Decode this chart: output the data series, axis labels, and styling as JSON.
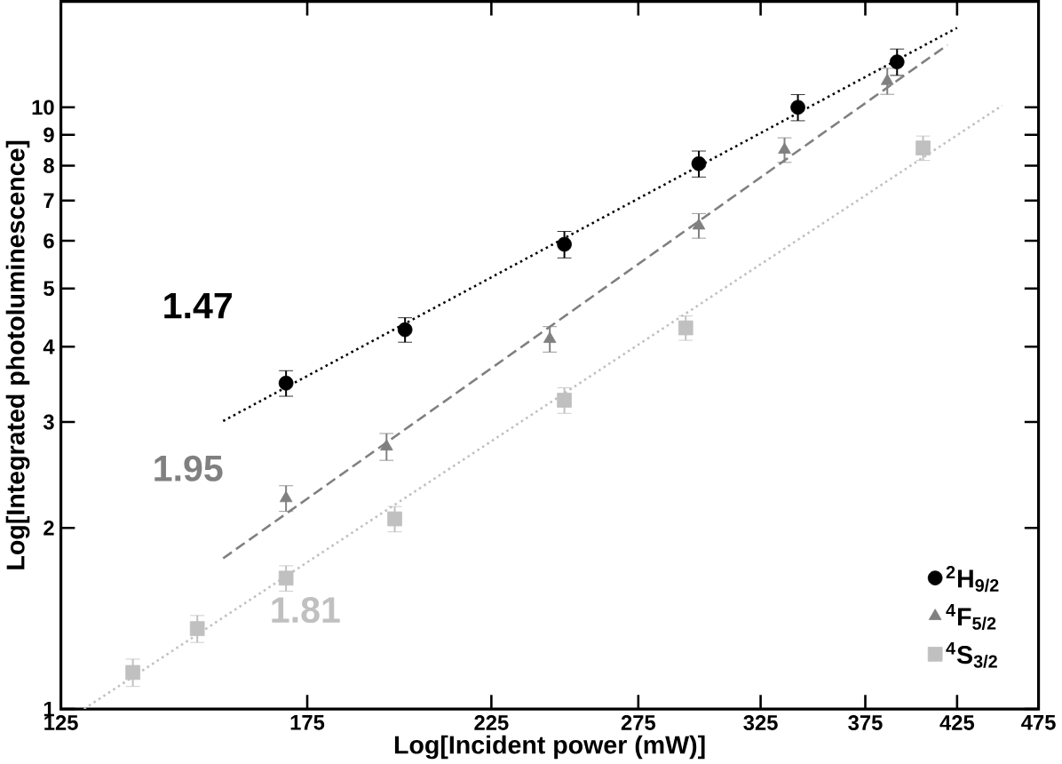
{
  "chart_data": {
    "type": "scatter",
    "xlabel": "Log[Incident power (mW)]",
    "ylabel": "Log[Integrated photoluminescence]",
    "log": "xy",
    "xlim": [
      125,
      475
    ],
    "ylim": [
      1,
      15
    ],
    "xticks": [
      125,
      175,
      225,
      275,
      325,
      375,
      425,
      475
    ],
    "yticks": [
      1,
      2,
      3,
      4,
      5,
      6,
      7,
      8,
      9,
      10
    ],
    "grid": false,
    "legend": "bottom right",
    "series": [
      {
        "name": "$^{2}$H$_{9/2}$",
        "marker": "circle",
        "color": "#000000",
        "x": [
          170,
          200,
          248.6,
          298.7,
          342,
          391.6
        ],
        "values": [
          3.48,
          4.27,
          5.92,
          8.06,
          10,
          11.9
        ],
        "errors": [
          0.17,
          0.2,
          0.3,
          0.4,
          0.5,
          0.6
        ]
      },
      {
        "name": "$^{4}$F$_{5/2}$",
        "marker": "triangle",
        "color": "#808080",
        "x": [
          170,
          195,
          243.7,
          298.7,
          335.8,
          386.4
        ],
        "values": [
          2.24,
          2.73,
          4.12,
          6.36,
          8.5,
          11.06
        ],
        "errors": [
          0.11,
          0.14,
          0.2,
          0.3,
          0.4,
          0.55
        ]
      },
      {
        "name": "$^{4}$S$_{3/2}$",
        "marker": "square",
        "color": "#c0c0c0",
        "x": [
          137.9,
          150.6,
          170,
          197.2,
          248.6,
          293.4,
          405.7
        ],
        "values": [
          1.15,
          1.36,
          1.65,
          2.07,
          3.26,
          4.3,
          8.56
        ],
        "errors": [
          0.06,
          0.07,
          0.08,
          0.1,
          0.16,
          0.2,
          0.4
        ]
      },
      {
        "type": "line",
        "line_style": "dotted",
        "color": "#000000",
        "x": [
          156,
          425
        ],
        "values": [
          3.01,
          13.56
        ]
      },
      {
        "type": "line",
        "line_style": "dashed",
        "color": "#808080",
        "x": [
          156,
          419.5
        ],
        "values": [
          1.78,
          12.7
        ]
      },
      {
        "type": "line",
        "line_style": "dotted",
        "color": "#c0c0c0",
        "x": [
          129,
          452
        ],
        "values": [
          1,
          10.07
        ]
      }
    ],
    "annotations": [
      "1.47",
      "1.95",
      "1.81"
    ]
  }
}
